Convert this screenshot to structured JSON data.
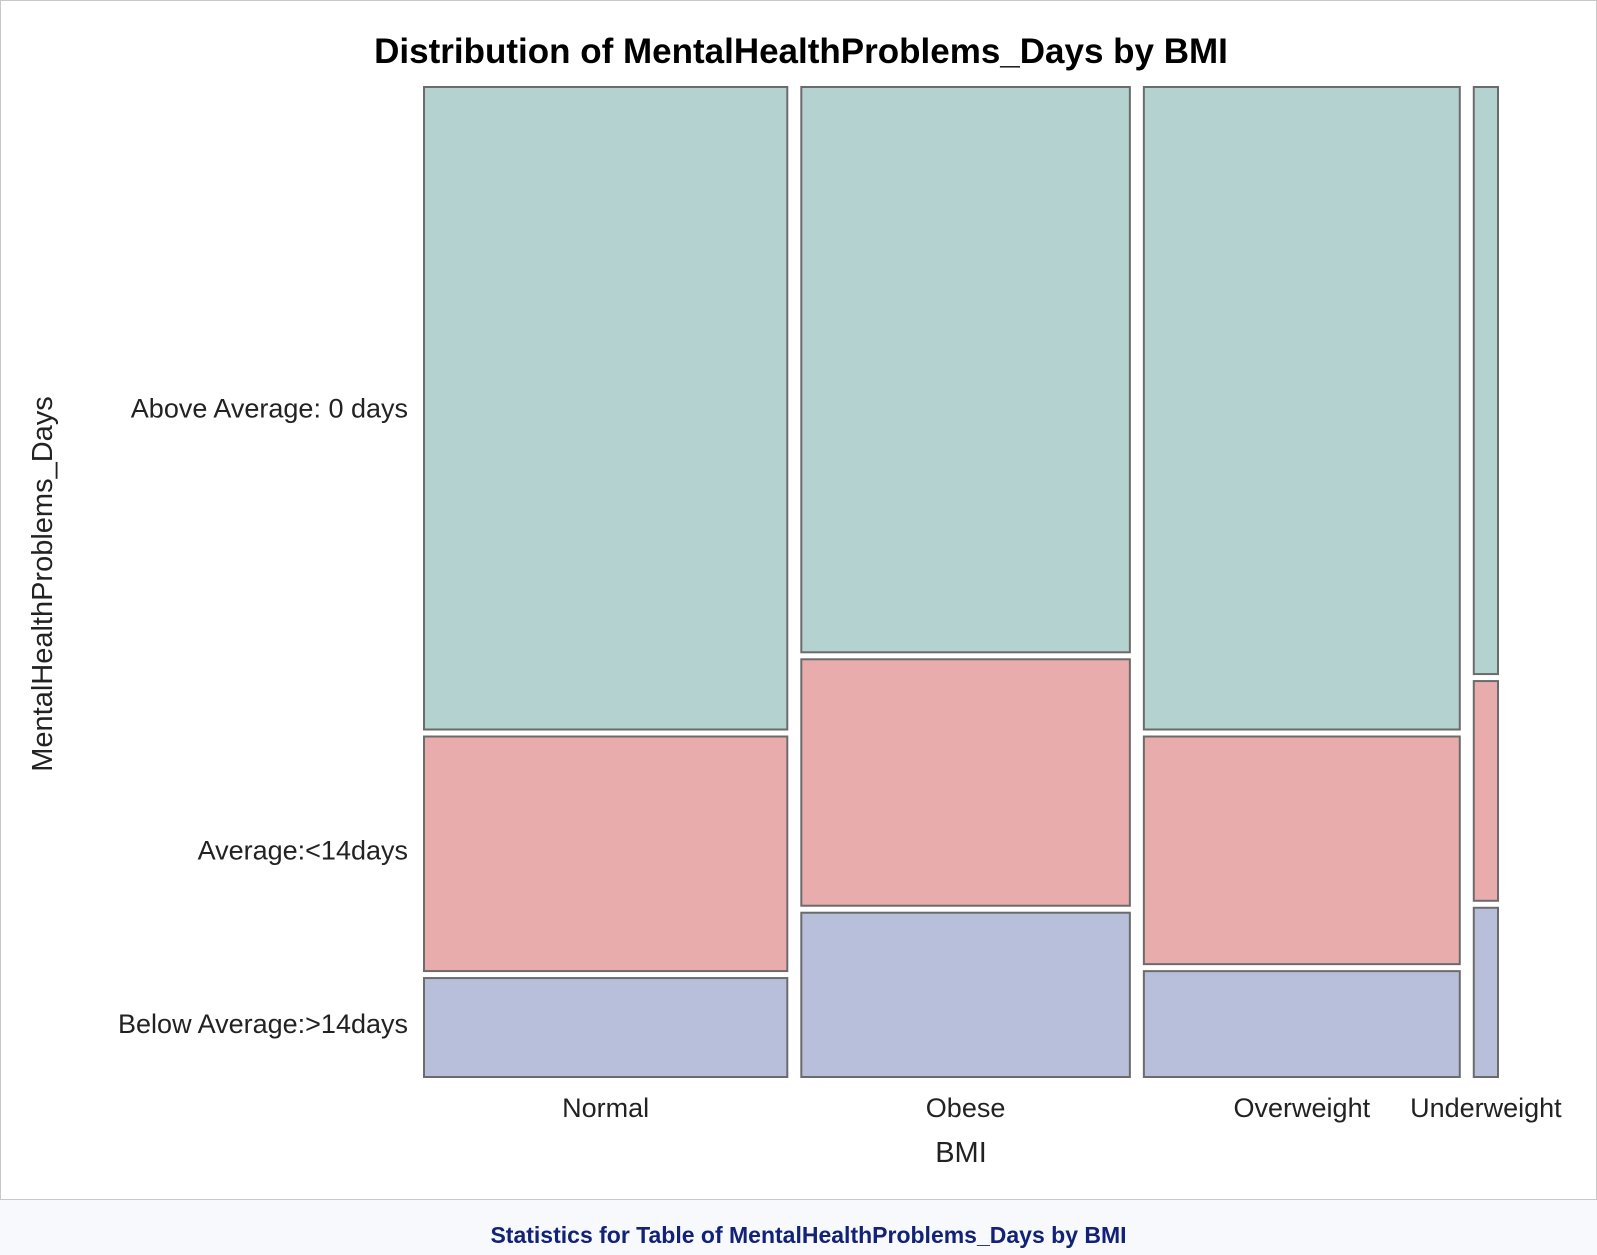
{
  "chart_data": {
    "type": "mosaic",
    "title": "Distribution of MentalHealthProblems_Days by BMI",
    "xlabel": "BMI",
    "ylabel": "MentalHealthProblems_Days",
    "categories": [
      "Normal",
      "Obese",
      "Overweight",
      "Underweight"
    ],
    "category_widths": [
      0.345,
      0.312,
      0.3,
      0.023
    ],
    "levels_bottom_to_top": [
      "Below Average:>14days",
      "Average:<14days",
      "Above Average: 0 days"
    ],
    "series": [
      {
        "name": "Below Average:>14days",
        "color": "#b8bfdb",
        "values": [
          0.107,
          0.173,
          0.114,
          0.178
        ]
      },
      {
        "name": "Average:<14days",
        "color": "#e8acac",
        "values": [
          0.244,
          0.256,
          0.237,
          0.229
        ]
      },
      {
        "name": "Above Average: 0 days",
        "color": "#b4d2d0",
        "values": [
          0.649,
          0.571,
          0.649,
          0.593
        ]
      }
    ],
    "ylim": [
      0,
      1
    ],
    "grid": false,
    "legend": "none"
  },
  "caption": "Statistics for Table of MentalHealthProblems_Days by BMI"
}
